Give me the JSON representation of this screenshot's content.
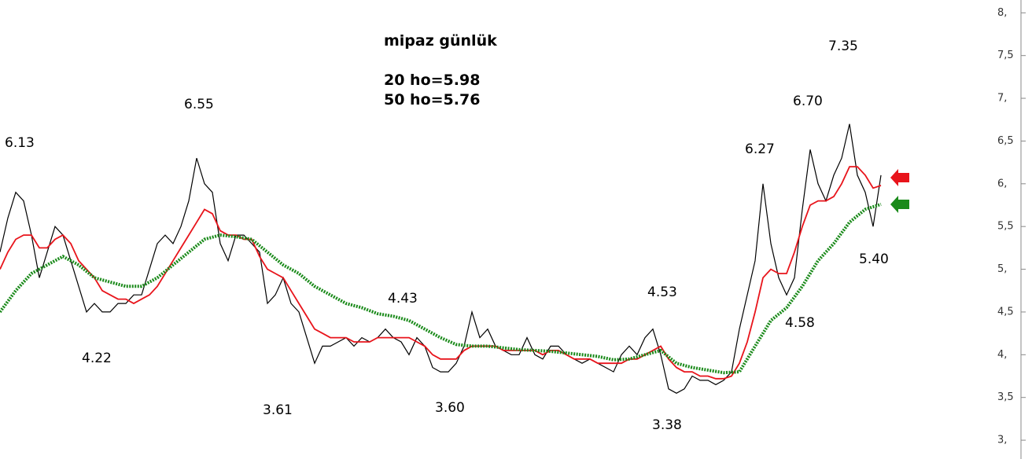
{
  "chart_data": {
    "type": "line",
    "title": "mipaz günlük",
    "subtitle": [
      "20 ho=5.98",
      "50 ho=5.76"
    ],
    "annotations": [
      "6.13",
      "4.22",
      "6.55",
      "3.61",
      "4.43",
      "3.60",
      "4.53",
      "3.38",
      "6.27",
      "4.58",
      "6.70",
      "7.35",
      "5.40"
    ],
    "ylim": [
      2.78,
      8.15
    ],
    "yticks": [
      {
        "value": 8,
        "label": "8,"
      },
      {
        "value": 7.5,
        "label": "7,5"
      },
      {
        "value": 7,
        "label": "7,"
      },
      {
        "value": 6.5,
        "label": "6,5"
      },
      {
        "value": 6,
        "label": "6,"
      },
      {
        "value": 5.5,
        "label": "5,5"
      },
      {
        "value": 5,
        "label": "5,"
      },
      {
        "value": 4.5,
        "label": "4,5"
      },
      {
        "value": 4,
        "label": "4,"
      },
      {
        "value": 3.5,
        "label": "3,5"
      },
      {
        "value": 3,
        "label": "3,"
      }
    ],
    "series": [
      {
        "color": "#000000",
        "values": [
          5.2,
          5.6,
          5.9,
          5.8,
          5.4,
          4.9,
          5.2,
          5.5,
          5.4,
          5.1,
          4.8,
          4.5,
          4.6,
          4.5,
          4.5,
          4.6,
          4.6,
          4.7,
          4.7,
          5.0,
          5.3,
          5.4,
          5.3,
          5.5,
          5.8,
          6.3,
          6.0,
          5.9,
          5.3,
          5.1,
          5.4,
          5.4,
          5.3,
          5.2,
          4.6,
          4.7,
          4.9,
          4.6,
          4.5,
          4.2,
          3.9,
          4.1,
          4.1,
          4.15,
          4.2,
          4.1,
          4.2,
          4.15,
          4.2,
          4.3,
          4.2,
          4.15,
          4.0,
          4.2,
          4.1,
          3.85,
          3.8,
          3.8,
          3.9,
          4.1,
          4.5,
          4.2,
          4.3,
          4.1,
          4.05,
          4.0,
          4.0,
          4.2,
          4.0,
          3.95,
          4.1,
          4.1,
          4.0,
          3.95,
          3.9,
          3.95,
          3.9,
          3.85,
          3.8,
          4.0,
          4.1,
          4.0,
          4.2,
          4.3,
          4.0,
          3.6,
          3.55,
          3.6,
          3.75,
          3.7,
          3.7,
          3.65,
          3.7,
          3.8,
          4.3,
          4.7,
          5.1,
          6.0,
          5.3,
          4.9,
          4.7,
          4.9,
          5.7,
          6.4,
          6.0,
          5.8,
          6.1,
          6.3,
          6.7,
          6.1,
          5.9,
          5.5,
          6.1
        ]
      },
      {
        "color": "#e8141b",
        "values": [
          5.0,
          5.2,
          5.35,
          5.4,
          5.4,
          5.25,
          5.25,
          5.35,
          5.4,
          5.3,
          5.1,
          5.0,
          4.9,
          4.75,
          4.7,
          4.65,
          4.65,
          4.6,
          4.65,
          4.7,
          4.8,
          4.95,
          5.1,
          5.25,
          5.4,
          5.55,
          5.7,
          5.65,
          5.45,
          5.4,
          5.4,
          5.35,
          5.35,
          5.15,
          5.0,
          4.95,
          4.9,
          4.75,
          4.6,
          4.45,
          4.3,
          4.25,
          4.2,
          4.2,
          4.2,
          4.15,
          4.15,
          4.15,
          4.2,
          4.2,
          4.2,
          4.2,
          4.2,
          4.15,
          4.1,
          4.0,
          3.95,
          3.95,
          3.95,
          4.05,
          4.1,
          4.1,
          4.1,
          4.1,
          4.05,
          4.05,
          4.05,
          4.05,
          4.05,
          4.0,
          4.05,
          4.05,
          4.0,
          3.95,
          3.95,
          3.95,
          3.9,
          3.9,
          3.9,
          3.9,
          3.95,
          3.95,
          4.0,
          4.05,
          4.1,
          3.95,
          3.85,
          3.8,
          3.8,
          3.75,
          3.75,
          3.72,
          3.72,
          3.75,
          3.9,
          4.15,
          4.5,
          4.9,
          5.0,
          4.95,
          4.95,
          5.2,
          5.5,
          5.75,
          5.8,
          5.8,
          5.85,
          6.0,
          6.2,
          6.2,
          6.1,
          5.95,
          5.98
        ]
      },
      {
        "color": "#1a8a1a",
        "values": [
          4.5,
          4.75,
          4.95,
          5.05,
          5.15,
          5.05,
          4.9,
          4.85,
          4.8,
          4.8,
          4.9,
          5.05,
          5.2,
          5.35,
          5.4,
          5.38,
          5.35,
          5.2,
          5.05,
          4.95,
          4.8,
          4.7,
          4.6,
          4.55,
          4.48,
          4.45,
          4.4,
          4.3,
          4.2,
          4.12,
          4.1,
          4.1,
          4.08,
          4.06,
          4.05,
          4.04,
          4.02,
          4.0,
          3.98,
          3.94,
          3.95,
          4.0,
          4.05,
          3.9,
          3.85,
          3.82,
          3.79,
          3.8,
          4.1,
          4.4,
          4.55,
          4.8,
          5.1,
          5.3,
          5.55,
          5.7,
          5.76
        ]
      }
    ]
  }
}
